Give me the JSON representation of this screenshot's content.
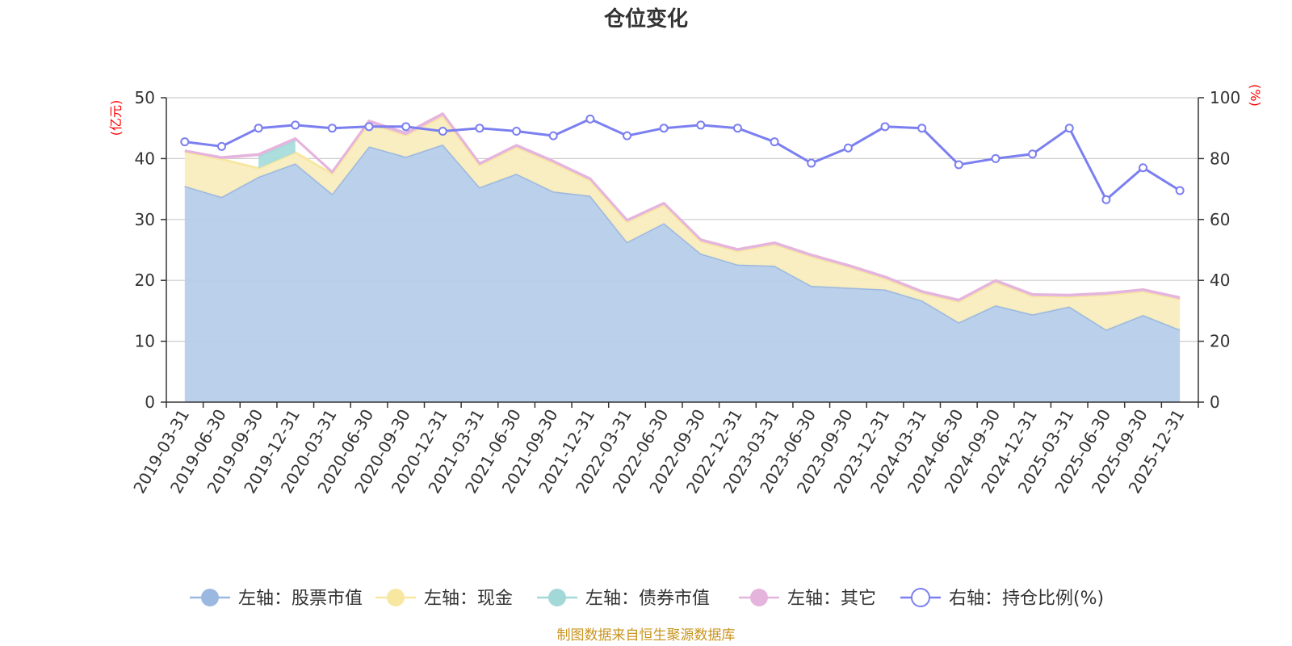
{
  "chart_data": {
    "type": "area",
    "title": "仓位变化",
    "left_axis": {
      "unit": "(亿元)",
      "ylim": [
        0,
        50
      ],
      "ticks": [
        "0",
        "10",
        "20",
        "30",
        "40",
        "50"
      ],
      "unit_color": "#ff0000"
    },
    "right_axis": {
      "unit": "(%)",
      "ylim": [
        0,
        100
      ],
      "ticks": [
        "0",
        "20",
        "40",
        "60",
        "80",
        "100"
      ],
      "unit_color": "#ff0000"
    },
    "categories": [
      "2019-03-31",
      "2019-06-30",
      "2019-09-30",
      "2019-12-31",
      "2020-03-31",
      "2020-06-30",
      "2020-09-30",
      "2020-12-31",
      "2021-03-31",
      "2021-06-30",
      "2021-09-30",
      "2021-12-31",
      "2022-03-31",
      "2022-06-30",
      "2022-09-30",
      "2022-12-31",
      "2023-03-31",
      "2023-06-30",
      "2023-09-30",
      "2023-12-31",
      "2024-03-31",
      "2024-06-30",
      "2024-09-30",
      "2024-12-31",
      "2025-03-31",
      "2025-06-30",
      "2025-09-30",
      "2025-12-31"
    ],
    "series": [
      {
        "name": "左轴：股票市值",
        "axis": "left",
        "color": "#9bb8e0",
        "fill": "#b7cdea",
        "values": [
          35.5,
          33.7,
          37.0,
          39.2,
          34.2,
          42.0,
          40.3,
          42.3,
          35.3,
          37.5,
          34.6,
          33.9,
          26.3,
          29.4,
          24.4,
          22.6,
          22.4,
          19.1,
          18.8,
          18.5,
          16.7,
          13.1,
          15.9,
          14.4,
          15.7,
          11.9,
          14.3,
          11.9
        ]
      },
      {
        "name": "左轴：现金",
        "axis": "left",
        "color": "#f8e7a0",
        "fill": "#f9edbe",
        "values": [
          5.6,
          6.2,
          1.4,
          1.8,
          3.3,
          3.8,
          3.5,
          4.7,
          3.6,
          4.4,
          4.7,
          2.5,
          3.3,
          3.0,
          2.0,
          2.2,
          3.5,
          4.8,
          3.4,
          1.8,
          1.2,
          3.4,
          3.8,
          3.0,
          1.6,
          5.7,
          3.9,
          5.0
        ]
      },
      {
        "name": "左轴：债券市值",
        "axis": "left",
        "color": "#a3d8d8",
        "fill": "#a9dcdc",
        "values": [
          0,
          0,
          2.0,
          2.0,
          0,
          0,
          0,
          0,
          0,
          0,
          0,
          0,
          0,
          0,
          0,
          0,
          0,
          0,
          0,
          0,
          0,
          0,
          0,
          0,
          0,
          0,
          0,
          0
        ]
      },
      {
        "name": "左轴：其它",
        "axis": "left",
        "color": "#e5b4dc",
        "fill": "#e7bfe0",
        "values": [
          0.2,
          0.3,
          0.3,
          0.3,
          0.3,
          0.4,
          0.4,
          0.4,
          0.3,
          0.3,
          0.3,
          0.3,
          0.3,
          0.3,
          0.3,
          0.3,
          0.3,
          0.3,
          0.3,
          0.3,
          0.3,
          0.3,
          0.3,
          0.3,
          0.3,
          0.3,
          0.3,
          0.3
        ]
      },
      {
        "name": "右轴：持仓比例(%)",
        "axis": "right",
        "color": "#7b7ff0",
        "line": true,
        "values": [
          85.5,
          84.0,
          90.0,
          91.0,
          90.0,
          90.5,
          90.5,
          89.0,
          90.0,
          89.0,
          87.5,
          93.0,
          87.5,
          90.0,
          91.0,
          90.0,
          85.5,
          78.5,
          83.5,
          90.5,
          90.0,
          78.0,
          80.0,
          81.5,
          90.0,
          66.5,
          77.0,
          69.5
        ]
      }
    ],
    "legend_position": "bottom",
    "grid": true
  },
  "source_text": "制图数据来自恒生聚源数据库",
  "source_color": "#c8941f"
}
